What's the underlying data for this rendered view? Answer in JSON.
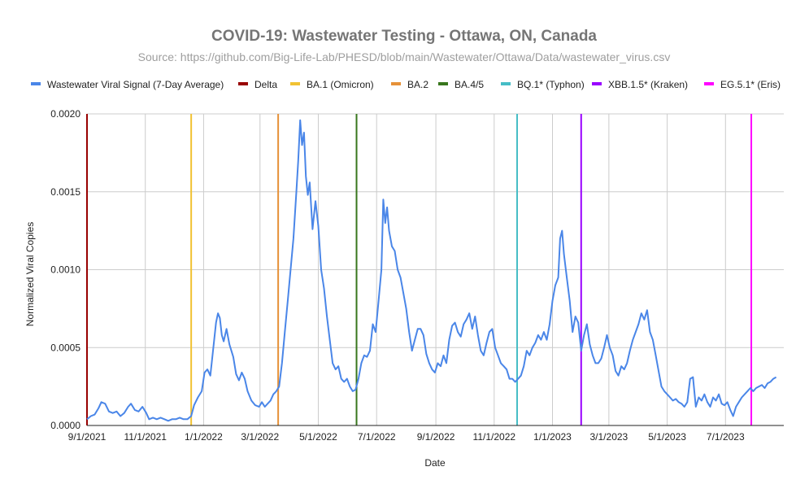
{
  "chart_data": {
    "type": "line",
    "title": "COVID-19: Wastewater Testing - Ottawa, ON, Canada",
    "subtitle": "Source: https://github.com/Big-Life-Lab/PHESD/blob/main/Wastewater/Ottawa/Data/wastewater_virus.csv",
    "xlabel": "Date",
    "ylabel": "Normalized Viral Copies",
    "ylim": [
      0,
      0.002
    ],
    "xlim": [
      "2021-09-01",
      "2023-08-31"
    ],
    "y_ticks": [
      "0.0000",
      "0.0005",
      "0.0010",
      "0.0015",
      "0.0020"
    ],
    "x_ticks": [
      {
        "date": "2021-09-01",
        "label": "9/1/2021"
      },
      {
        "date": "2021-11-01",
        "label": "11/1/2021"
      },
      {
        "date": "2022-01-01",
        "label": "1/1/2022"
      },
      {
        "date": "2022-03-01",
        "label": "3/1/2022"
      },
      {
        "date": "2022-05-01",
        "label": "5/1/2022"
      },
      {
        "date": "2022-07-01",
        "label": "7/1/2022"
      },
      {
        "date": "2022-09-01",
        "label": "9/1/2022"
      },
      {
        "date": "2022-11-01",
        "label": "11/1/2022"
      },
      {
        "date": "2023-01-01",
        "label": "1/1/2023"
      },
      {
        "date": "2023-03-01",
        "label": "3/1/2023"
      },
      {
        "date": "2023-05-01",
        "label": "5/1/2023"
      },
      {
        "date": "2023-07-01",
        "label": "7/1/2023"
      }
    ],
    "grid": true,
    "legend_position": "top",
    "series": [
      {
        "name": "Wastewater Viral Signal (7-Day Average)",
        "color": "#4a86e8",
        "points": [
          [
            "2021-09-01",
            4e-05
          ],
          [
            "2021-09-05",
            6e-05
          ],
          [
            "2021-09-09",
            7e-05
          ],
          [
            "2021-09-13",
            0.00011
          ],
          [
            "2021-09-16",
            0.00015
          ],
          [
            "2021-09-20",
            0.00014
          ],
          [
            "2021-09-24",
            9e-05
          ],
          [
            "2021-09-28",
            8e-05
          ],
          [
            "2021-10-02",
            9e-05
          ],
          [
            "2021-10-06",
            6e-05
          ],
          [
            "2021-10-10",
            8e-05
          ],
          [
            "2021-10-14",
            0.00012
          ],
          [
            "2021-10-17",
            0.00014
          ],
          [
            "2021-10-21",
            0.0001
          ],
          [
            "2021-10-25",
            9e-05
          ],
          [
            "2021-10-29",
            0.00012
          ],
          [
            "2021-11-02",
            8e-05
          ],
          [
            "2021-11-05",
            4e-05
          ],
          [
            "2021-11-09",
            5e-05
          ],
          [
            "2021-11-13",
            4e-05
          ],
          [
            "2021-11-17",
            5e-05
          ],
          [
            "2021-11-21",
            4e-05
          ],
          [
            "2021-11-25",
            3e-05
          ],
          [
            "2021-11-29",
            4e-05
          ],
          [
            "2021-12-03",
            4e-05
          ],
          [
            "2021-12-07",
            5e-05
          ],
          [
            "2021-12-11",
            4e-05
          ],
          [
            "2021-12-15",
            4e-05
          ],
          [
            "2021-12-19",
            6e-05
          ],
          [
            "2021-12-22",
            0.00013
          ],
          [
            "2021-12-26",
            0.00018
          ],
          [
            "2021-12-30",
            0.00022
          ],
          [
            "2022-01-02",
            0.00034
          ],
          [
            "2022-01-05",
            0.00036
          ],
          [
            "2022-01-08",
            0.00032
          ],
          [
            "2022-01-11",
            0.00049
          ],
          [
            "2022-01-14",
            0.00066
          ],
          [
            "2022-01-16",
            0.00072
          ],
          [
            "2022-01-18",
            0.00069
          ],
          [
            "2022-01-20",
            0.00058
          ],
          [
            "2022-01-22",
            0.00054
          ],
          [
            "2022-01-25",
            0.00062
          ],
          [
            "2022-01-28",
            0.00052
          ],
          [
            "2022-02-01",
            0.00044
          ],
          [
            "2022-02-04",
            0.00033
          ],
          [
            "2022-02-07",
            0.00029
          ],
          [
            "2022-02-10",
            0.00034
          ],
          [
            "2022-02-13",
            0.0003
          ],
          [
            "2022-02-16",
            0.00022
          ],
          [
            "2022-02-20",
            0.00016
          ],
          [
            "2022-02-24",
            0.00013
          ],
          [
            "2022-02-28",
            0.00012
          ],
          [
            "2022-03-03",
            0.00015
          ],
          [
            "2022-03-06",
            0.00012
          ],
          [
            "2022-03-09",
            0.00014
          ],
          [
            "2022-03-12",
            0.00016
          ],
          [
            "2022-03-15",
            0.0002
          ],
          [
            "2022-03-18",
            0.00022
          ],
          [
            "2022-03-21",
            0.00025
          ],
          [
            "2022-03-24",
            0.0004
          ],
          [
            "2022-03-27",
            0.0006
          ],
          [
            "2022-03-30",
            0.0008
          ],
          [
            "2022-04-02",
            0.001
          ],
          [
            "2022-04-05",
            0.0012
          ],
          [
            "2022-04-08",
            0.0015
          ],
          [
            "2022-04-10",
            0.0017
          ],
          [
            "2022-04-12",
            0.00196
          ],
          [
            "2022-04-14",
            0.0018
          ],
          [
            "2022-04-16",
            0.00188
          ],
          [
            "2022-04-18",
            0.0016
          ],
          [
            "2022-04-20",
            0.00148
          ],
          [
            "2022-04-22",
            0.00156
          ],
          [
            "2022-04-25",
            0.00126
          ],
          [
            "2022-04-28",
            0.00144
          ],
          [
            "2022-05-01",
            0.00128
          ],
          [
            "2022-05-04",
            0.001
          ],
          [
            "2022-05-07",
            0.00088
          ],
          [
            "2022-05-10",
            0.0007
          ],
          [
            "2022-05-13",
            0.00055
          ],
          [
            "2022-05-16",
            0.0004
          ],
          [
            "2022-05-19",
            0.00036
          ],
          [
            "2022-05-22",
            0.00038
          ],
          [
            "2022-05-25",
            0.0003
          ],
          [
            "2022-05-28",
            0.00028
          ],
          [
            "2022-05-31",
            0.0003
          ],
          [
            "2022-06-03",
            0.00025
          ],
          [
            "2022-06-06",
            0.00022
          ],
          [
            "2022-06-09",
            0.00023
          ],
          [
            "2022-06-12",
            0.0003
          ],
          [
            "2022-06-15",
            0.0004
          ],
          [
            "2022-06-18",
            0.00045
          ],
          [
            "2022-06-21",
            0.00044
          ],
          [
            "2022-06-24",
            0.00048
          ],
          [
            "2022-06-27",
            0.00065
          ],
          [
            "2022-06-30",
            0.0006
          ],
          [
            "2022-07-03",
            0.0008
          ],
          [
            "2022-07-06",
            0.001
          ],
          [
            "2022-07-08",
            0.00145
          ],
          [
            "2022-07-10",
            0.0013
          ],
          [
            "2022-07-12",
            0.0014
          ],
          [
            "2022-07-14",
            0.00125
          ],
          [
            "2022-07-17",
            0.00115
          ],
          [
            "2022-07-20",
            0.00112
          ],
          [
            "2022-07-23",
            0.001
          ],
          [
            "2022-07-26",
            0.00095
          ],
          [
            "2022-07-29",
            0.00085
          ],
          [
            "2022-08-01",
            0.00075
          ],
          [
            "2022-08-04",
            0.0006
          ],
          [
            "2022-08-07",
            0.00048
          ],
          [
            "2022-08-10",
            0.00055
          ],
          [
            "2022-08-13",
            0.00062
          ],
          [
            "2022-08-16",
            0.00062
          ],
          [
            "2022-08-19",
            0.00058
          ],
          [
            "2022-08-22",
            0.00046
          ],
          [
            "2022-08-25",
            0.0004
          ],
          [
            "2022-08-28",
            0.00036
          ],
          [
            "2022-08-31",
            0.00034
          ],
          [
            "2022-09-03",
            0.0004
          ],
          [
            "2022-09-06",
            0.00038
          ],
          [
            "2022-09-09",
            0.00045
          ],
          [
            "2022-09-12",
            0.0004
          ],
          [
            "2022-09-15",
            0.00055
          ],
          [
            "2022-09-18",
            0.00064
          ],
          [
            "2022-09-21",
            0.00066
          ],
          [
            "2022-09-24",
            0.0006
          ],
          [
            "2022-09-27",
            0.00057
          ],
          [
            "2022-09-30",
            0.00065
          ],
          [
            "2022-10-03",
            0.00068
          ],
          [
            "2022-10-06",
            0.00072
          ],
          [
            "2022-10-09",
            0.00062
          ],
          [
            "2022-10-12",
            0.0007
          ],
          [
            "2022-10-15",
            0.00058
          ],
          [
            "2022-10-18",
            0.00048
          ],
          [
            "2022-10-21",
            0.00045
          ],
          [
            "2022-10-24",
            0.00053
          ],
          [
            "2022-10-27",
            0.0006
          ],
          [
            "2022-10-30",
            0.00062
          ],
          [
            "2022-11-02",
            0.0005
          ],
          [
            "2022-11-05",
            0.00045
          ],
          [
            "2022-11-08",
            0.0004
          ],
          [
            "2022-11-11",
            0.00038
          ],
          [
            "2022-11-14",
            0.00036
          ],
          [
            "2022-11-17",
            0.0003
          ],
          [
            "2022-11-20",
            0.0003
          ],
          [
            "2022-11-23",
            0.00028
          ],
          [
            "2022-11-26",
            0.0003
          ],
          [
            "2022-11-29",
            0.00032
          ],
          [
            "2022-12-02",
            0.00038
          ],
          [
            "2022-12-05",
            0.00048
          ],
          [
            "2022-12-08",
            0.00045
          ],
          [
            "2022-12-11",
            0.0005
          ],
          [
            "2022-12-14",
            0.00053
          ],
          [
            "2022-12-17",
            0.00058
          ],
          [
            "2022-12-20",
            0.00055
          ],
          [
            "2022-12-23",
            0.0006
          ],
          [
            "2022-12-26",
            0.00055
          ],
          [
            "2022-12-29",
            0.00065
          ],
          [
            "2023-01-01",
            0.0008
          ],
          [
            "2023-01-04",
            0.0009
          ],
          [
            "2023-01-07",
            0.00095
          ],
          [
            "2023-01-09",
            0.0012
          ],
          [
            "2023-01-11",
            0.00125
          ],
          [
            "2023-01-13",
            0.0011
          ],
          [
            "2023-01-16",
            0.00095
          ],
          [
            "2023-01-19",
            0.0008
          ],
          [
            "2023-01-22",
            0.0006
          ],
          [
            "2023-01-25",
            0.0007
          ],
          [
            "2023-01-28",
            0.00066
          ],
          [
            "2023-01-31",
            0.00048
          ],
          [
            "2023-02-03",
            0.00058
          ],
          [
            "2023-02-06",
            0.00065
          ],
          [
            "2023-02-09",
            0.00052
          ],
          [
            "2023-02-12",
            0.00045
          ],
          [
            "2023-02-15",
            0.0004
          ],
          [
            "2023-02-18",
            0.0004
          ],
          [
            "2023-02-21",
            0.00043
          ],
          [
            "2023-02-24",
            0.0005
          ],
          [
            "2023-02-27",
            0.00058
          ],
          [
            "2023-03-02",
            0.0005
          ],
          [
            "2023-03-05",
            0.00045
          ],
          [
            "2023-03-08",
            0.00035
          ],
          [
            "2023-03-11",
            0.00032
          ],
          [
            "2023-03-14",
            0.00038
          ],
          [
            "2023-03-17",
            0.00036
          ],
          [
            "2023-03-20",
            0.0004
          ],
          [
            "2023-03-23",
            0.00048
          ],
          [
            "2023-03-26",
            0.00055
          ],
          [
            "2023-03-29",
            0.0006
          ],
          [
            "2023-04-01",
            0.00065
          ],
          [
            "2023-04-04",
            0.00072
          ],
          [
            "2023-04-07",
            0.00068
          ],
          [
            "2023-04-10",
            0.00074
          ],
          [
            "2023-04-13",
            0.0006
          ],
          [
            "2023-04-16",
            0.00055
          ],
          [
            "2023-04-19",
            0.00045
          ],
          [
            "2023-04-22",
            0.00035
          ],
          [
            "2023-04-25",
            0.00025
          ],
          [
            "2023-04-28",
            0.00022
          ],
          [
            "2023-05-01",
            0.0002
          ],
          [
            "2023-05-04",
            0.00018
          ],
          [
            "2023-05-07",
            0.00016
          ],
          [
            "2023-05-10",
            0.00017
          ],
          [
            "2023-05-13",
            0.00015
          ],
          [
            "2023-05-16",
            0.00014
          ],
          [
            "2023-05-19",
            0.00012
          ],
          [
            "2023-05-22",
            0.00015
          ],
          [
            "2023-05-25",
            0.0003
          ],
          [
            "2023-05-28",
            0.00031
          ],
          [
            "2023-05-31",
            0.00012
          ],
          [
            "2023-06-03",
            0.00018
          ],
          [
            "2023-06-06",
            0.00016
          ],
          [
            "2023-06-09",
            0.0002
          ],
          [
            "2023-06-12",
            0.00015
          ],
          [
            "2023-06-15",
            0.00012
          ],
          [
            "2023-06-18",
            0.00018
          ],
          [
            "2023-06-21",
            0.00016
          ],
          [
            "2023-06-24",
            0.0002
          ],
          [
            "2023-06-27",
            0.00014
          ],
          [
            "2023-06-30",
            0.00013
          ],
          [
            "2023-07-03",
            0.00015
          ],
          [
            "2023-07-06",
            0.0001
          ],
          [
            "2023-07-09",
            6e-05
          ],
          [
            "2023-07-12",
            0.00012
          ],
          [
            "2023-07-15",
            0.00015
          ],
          [
            "2023-07-18",
            0.00018
          ],
          [
            "2023-07-21",
            0.0002
          ],
          [
            "2023-07-24",
            0.00022
          ],
          [
            "2023-07-27",
            0.00024
          ],
          [
            "2023-07-30",
            0.00022
          ],
          [
            "2023-08-02",
            0.00024
          ],
          [
            "2023-08-05",
            0.00025
          ],
          [
            "2023-08-08",
            0.00026
          ],
          [
            "2023-08-11",
            0.00024
          ],
          [
            "2023-08-14",
            0.00027
          ],
          [
            "2023-08-17",
            0.00028
          ],
          [
            "2023-08-20",
            0.0003
          ],
          [
            "2023-08-23",
            0.00031
          ]
        ]
      }
    ],
    "variants": [
      {
        "name": "Delta",
        "date": "2021-09-01",
        "color": "#980000"
      },
      {
        "name": "BA.1 (Omicron)",
        "date": "2021-12-19",
        "color": "#f1c232"
      },
      {
        "name": "BA.2",
        "date": "2022-03-20",
        "color": "#e69138"
      },
      {
        "name": "BA.4/5",
        "date": "2022-06-10",
        "color": "#38761d"
      },
      {
        "name": "BQ.1* (Typhon)",
        "date": "2022-11-25",
        "color": "#46bdc6"
      },
      {
        "name": "XBB.1.5* (Kraken)",
        "date": "2023-01-31",
        "color": "#9900ff"
      },
      {
        "name": "EG.5.1* (Eris)",
        "date": "2023-07-28",
        "color": "#ff00ff"
      }
    ],
    "gridline_color": "#cccccc",
    "axis_color": "#222222"
  }
}
